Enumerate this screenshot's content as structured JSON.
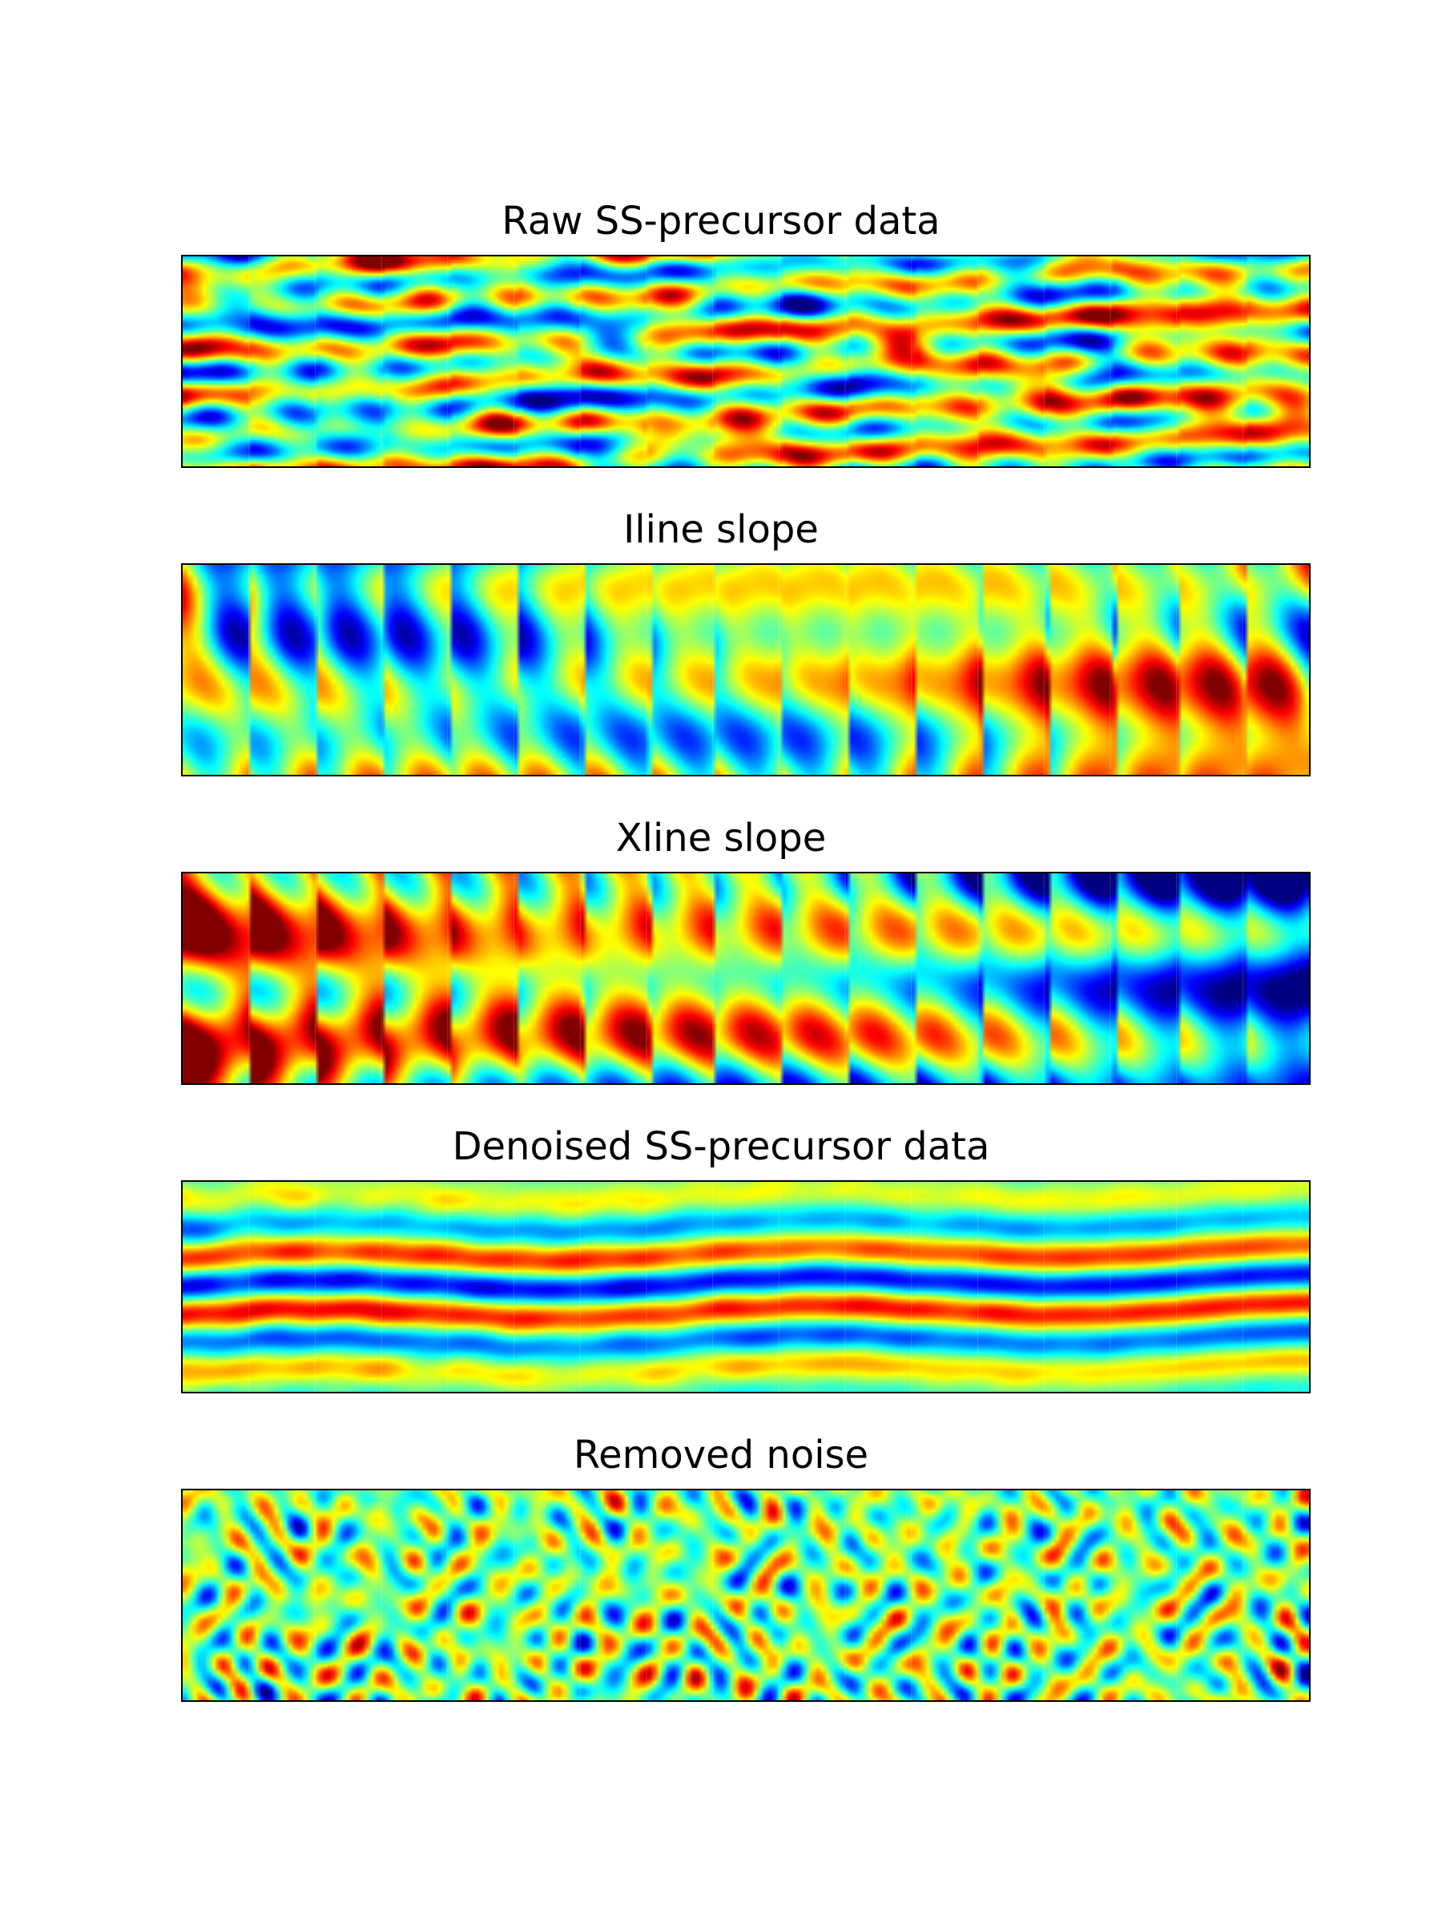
{
  "figure": {
    "colormap": "jet",
    "frame_color": "#000000"
  },
  "chart_data": [
    {
      "type": "heatmap",
      "title": "Raw SS-precursor data",
      "xlabel": "",
      "ylabel": "",
      "show_ticks": false,
      "grid": false,
      "colormap": "jet",
      "gathers": 17,
      "dominant_structure": "noisy high-amplitude random texture with faint horizontal events"
    },
    {
      "type": "heatmap",
      "title": "Iline slope",
      "xlabel": "",
      "ylabel": "",
      "show_ticks": false,
      "grid": false,
      "colormap": "jet",
      "gathers": 17,
      "dominant_structure": "smooth blobs in repeating gather segments"
    },
    {
      "type": "heatmap",
      "title": "Xline slope",
      "xlabel": "",
      "ylabel": "",
      "show_ticks": false,
      "grid": false,
      "colormap": "jet",
      "gathers": 17,
      "dominant_structure": "smooth blobs, red dominant on left, blue dominant on right"
    },
    {
      "type": "heatmap",
      "title": "Denoised SS-precursor data",
      "xlabel": "",
      "ylabel": "",
      "show_ticks": false,
      "grid": false,
      "colormap": "jet",
      "gathers": 17,
      "dominant_structure": "green background with coherent horizontal red/blue events"
    },
    {
      "type": "heatmap",
      "title": "Removed noise",
      "xlabel": "",
      "ylabel": "",
      "show_ticks": false,
      "grid": false,
      "colormap": "jet",
      "gathers": 17,
      "dominant_structure": "incoherent random noise texture"
    }
  ]
}
